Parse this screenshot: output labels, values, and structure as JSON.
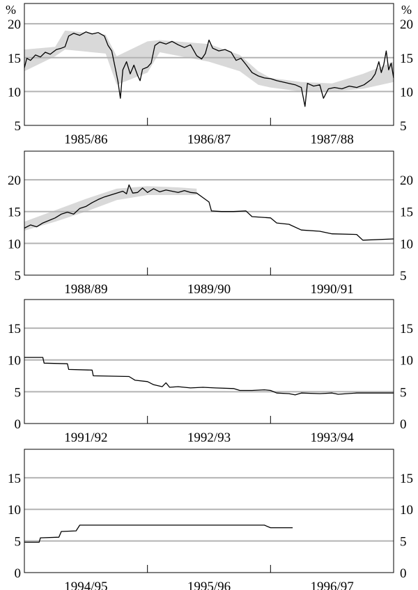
{
  "unit_label": "%",
  "chart_data": [
    {
      "type": "line",
      "ylim": [
        5,
        23
      ],
      "yticks": [
        5,
        10,
        15,
        20
      ],
      "grid": true,
      "x_range": [
        1985.0,
        1988.0
      ],
      "categories": [
        "1985/86",
        "1986/87",
        "1987/88"
      ],
      "series_color": "#000000",
      "band_color": "#d9d9d9",
      "series": [
        {
          "points": [
            [
              1985.0,
              13.5
            ],
            [
              1985.02,
              14.9
            ],
            [
              1985.05,
              14.6
            ],
            [
              1985.09,
              15.4
            ],
            [
              1985.13,
              15.1
            ],
            [
              1985.17,
              15.8
            ],
            [
              1985.21,
              15.5
            ],
            [
              1985.26,
              16.2
            ],
            [
              1985.3,
              16.4
            ],
            [
              1985.33,
              16.6
            ],
            [
              1985.36,
              18.2
            ],
            [
              1985.4,
              18.6
            ],
            [
              1985.45,
              18.3
            ],
            [
              1985.5,
              18.8
            ],
            [
              1985.55,
              18.5
            ],
            [
              1985.6,
              18.7
            ],
            [
              1985.65,
              18.2
            ],
            [
              1985.68,
              16.8
            ],
            [
              1985.71,
              16.0
            ],
            [
              1985.73,
              14.2
            ],
            [
              1985.76,
              11.5
            ],
            [
              1985.78,
              9.0
            ],
            [
              1985.8,
              13.2
            ],
            [
              1985.83,
              14.4
            ],
            [
              1985.86,
              12.6
            ],
            [
              1985.89,
              13.9
            ],
            [
              1985.92,
              12.4
            ],
            [
              1985.94,
              11.6
            ],
            [
              1985.96,
              13.3
            ],
            [
              1986.0,
              13.6
            ],
            [
              1986.03,
              14.2
            ],
            [
              1986.06,
              16.8
            ],
            [
              1986.1,
              17.3
            ],
            [
              1986.15,
              17.0
            ],
            [
              1986.2,
              17.4
            ],
            [
              1986.25,
              16.9
            ],
            [
              1986.3,
              16.5
            ],
            [
              1986.35,
              16.9
            ],
            [
              1986.4,
              15.3
            ],
            [
              1986.44,
              14.8
            ],
            [
              1986.47,
              15.6
            ],
            [
              1986.5,
              17.6
            ],
            [
              1986.53,
              16.4
            ],
            [
              1986.58,
              16.0
            ],
            [
              1986.63,
              16.2
            ],
            [
              1986.68,
              15.8
            ],
            [
              1986.72,
              14.6
            ],
            [
              1986.76,
              14.9
            ],
            [
              1986.8,
              14.0
            ],
            [
              1986.85,
              12.8
            ],
            [
              1986.9,
              12.3
            ],
            [
              1986.95,
              12.0
            ],
            [
              1987.0,
              11.9
            ],
            [
              1987.05,
              11.6
            ],
            [
              1987.1,
              11.4
            ],
            [
              1987.15,
              11.2
            ],
            [
              1987.2,
              11.0
            ],
            [
              1987.25,
              10.6
            ],
            [
              1987.28,
              7.8
            ],
            [
              1987.3,
              11.2
            ],
            [
              1987.35,
              10.8
            ],
            [
              1987.4,
              11.0
            ],
            [
              1987.43,
              9.0
            ],
            [
              1987.47,
              10.4
            ],
            [
              1987.52,
              10.6
            ],
            [
              1987.58,
              10.4
            ],
            [
              1987.64,
              10.8
            ],
            [
              1987.7,
              10.6
            ],
            [
              1987.76,
              11.0
            ],
            [
              1987.82,
              11.8
            ],
            [
              1987.85,
              12.6
            ],
            [
              1987.88,
              14.4
            ],
            [
              1987.9,
              12.8
            ],
            [
              1987.92,
              14.0
            ],
            [
              1987.94,
              16.0
            ],
            [
              1987.96,
              13.2
            ],
            [
              1987.98,
              14.2
            ],
            [
              1988.0,
              12.0
            ]
          ]
        }
      ],
      "range_band": [
        [
          1985.0,
          13.0,
          16.2
        ],
        [
          1985.25,
          15.2,
          16.6
        ],
        [
          1985.33,
          16.2,
          19.0
        ],
        [
          1985.66,
          15.6,
          18.4
        ],
        [
          1985.75,
          11.0,
          15.2
        ],
        [
          1986.0,
          12.8,
          17.4
        ],
        [
          1986.1,
          15.8,
          17.6
        ],
        [
          1986.5,
          14.4,
          17.0
        ],
        [
          1986.75,
          13.0,
          15.4
        ],
        [
          1986.9,
          11.0,
          13.0
        ],
        [
          1987.0,
          10.6,
          12.0
        ],
        [
          1987.25,
          10.0,
          11.4
        ],
        [
          1987.5,
          10.0,
          11.2
        ],
        [
          1987.75,
          10.4,
          12.6
        ],
        [
          1988.0,
          11.4,
          14.4
        ]
      ]
    },
    {
      "type": "line",
      "ylim": [
        5,
        24.5
      ],
      "yticks": [
        5,
        10,
        15,
        20
      ],
      "grid": true,
      "x_range": [
        1988.0,
        1991.0
      ],
      "categories": [
        "1988/89",
        "1989/90",
        "1990/91"
      ],
      "series_color": "#000000",
      "band_color": "#d9d9d9",
      "series": [
        {
          "points": [
            [
              1988.0,
              12.4
            ],
            [
              1988.05,
              12.9
            ],
            [
              1988.1,
              12.6
            ],
            [
              1988.15,
              13.2
            ],
            [
              1988.2,
              13.6
            ],
            [
              1988.25,
              14.0
            ],
            [
              1988.3,
              14.6
            ],
            [
              1988.35,
              14.9
            ],
            [
              1988.4,
              14.6
            ],
            [
              1988.45,
              15.5
            ],
            [
              1988.5,
              15.8
            ],
            [
              1988.55,
              16.4
            ],
            [
              1988.6,
              16.9
            ],
            [
              1988.65,
              17.3
            ],
            [
              1988.7,
              17.6
            ],
            [
              1988.75,
              17.9
            ],
            [
              1988.8,
              18.2
            ],
            [
              1988.83,
              17.8
            ],
            [
              1988.85,
              19.2
            ],
            [
              1988.88,
              17.9
            ],
            [
              1988.92,
              18.0
            ],
            [
              1988.96,
              18.7
            ],
            [
              1989.0,
              18.0
            ],
            [
              1989.05,
              18.6
            ],
            [
              1989.1,
              18.1
            ],
            [
              1989.15,
              18.4
            ],
            [
              1989.2,
              18.2
            ],
            [
              1989.25,
              18.0
            ],
            [
              1989.3,
              18.3
            ],
            [
              1989.35,
              18.0
            ],
            [
              1989.4,
              17.9
            ],
            [
              1989.45,
              17.2
            ],
            [
              1989.5,
              16.5
            ],
            [
              1989.52,
              15.1
            ],
            [
              1989.6,
              15.0
            ],
            [
              1989.7,
              15.0
            ],
            [
              1989.8,
              15.1
            ],
            [
              1989.85,
              14.2
            ],
            [
              1990.0,
              14.0
            ],
            [
              1990.05,
              13.2
            ],
            [
              1990.15,
              13.0
            ],
            [
              1990.25,
              12.1
            ],
            [
              1990.4,
              11.9
            ],
            [
              1990.5,
              11.5
            ],
            [
              1990.7,
              11.4
            ],
            [
              1990.75,
              10.5
            ],
            [
              1991.0,
              10.7
            ]
          ]
        }
      ],
      "range_band": [
        [
          1988.0,
          12.0,
          13.4
        ],
        [
          1988.25,
          13.4,
          15.2
        ],
        [
          1988.5,
          15.0,
          17.0
        ],
        [
          1988.75,
          16.8,
          18.6
        ],
        [
          1989.0,
          17.6,
          19.0
        ],
        [
          1989.25,
          17.6,
          18.8
        ],
        [
          1989.4,
          17.6,
          18.6
        ]
      ]
    },
    {
      "type": "line",
      "ylim": [
        0,
        19.5
      ],
      "yticks": [
        0,
        5,
        10,
        15
      ],
      "grid": true,
      "x_range": [
        1991.0,
        1994.0
      ],
      "categories": [
        "1991/92",
        "1992/93",
        "1993/94"
      ],
      "series_color": "#000000",
      "series": [
        {
          "points": [
            [
              1991.0,
              10.4
            ],
            [
              1991.15,
              10.4
            ],
            [
              1991.16,
              9.5
            ],
            [
              1991.35,
              9.4
            ],
            [
              1991.36,
              8.5
            ],
            [
              1991.55,
              8.4
            ],
            [
              1991.56,
              7.5
            ],
            [
              1991.85,
              7.4
            ],
            [
              1991.9,
              6.8
            ],
            [
              1992.0,
              6.6
            ],
            [
              1992.05,
              6.1
            ],
            [
              1992.12,
              5.8
            ],
            [
              1992.15,
              6.4
            ],
            [
              1992.18,
              5.7
            ],
            [
              1992.25,
              5.8
            ],
            [
              1992.35,
              5.6
            ],
            [
              1992.45,
              5.7
            ],
            [
              1992.55,
              5.6
            ],
            [
              1992.7,
              5.5
            ],
            [
              1992.75,
              5.2
            ],
            [
              1992.85,
              5.2
            ],
            [
              1992.95,
              5.3
            ],
            [
              1993.0,
              5.2
            ],
            [
              1993.05,
              4.8
            ],
            [
              1993.15,
              4.7
            ],
            [
              1993.2,
              4.5
            ],
            [
              1993.25,
              4.8
            ],
            [
              1993.4,
              4.7
            ],
            [
              1993.5,
              4.8
            ],
            [
              1993.55,
              4.6
            ],
            [
              1993.7,
              4.8
            ],
            [
              1994.0,
              4.8
            ]
          ]
        }
      ]
    },
    {
      "type": "line",
      "ylim": [
        0,
        19.5
      ],
      "yticks": [
        0,
        5,
        10,
        15
      ],
      "grid": true,
      "x_range": [
        1994.0,
        1997.0
      ],
      "categories": [
        "1994/95",
        "1995/96",
        "1996/97"
      ],
      "series_color": "#000000",
      "series": [
        {
          "points": [
            [
              1994.0,
              4.8
            ],
            [
              1994.12,
              4.8
            ],
            [
              1994.13,
              5.5
            ],
            [
              1994.28,
              5.6
            ],
            [
              1994.3,
              6.5
            ],
            [
              1994.42,
              6.6
            ],
            [
              1994.45,
              7.5
            ],
            [
              1994.8,
              7.5
            ],
            [
              1995.0,
              7.5
            ],
            [
              1995.4,
              7.5
            ],
            [
              1995.95,
              7.5
            ],
            [
              1996.0,
              7.1
            ],
            [
              1996.18,
              7.1
            ]
          ]
        }
      ]
    }
  ]
}
